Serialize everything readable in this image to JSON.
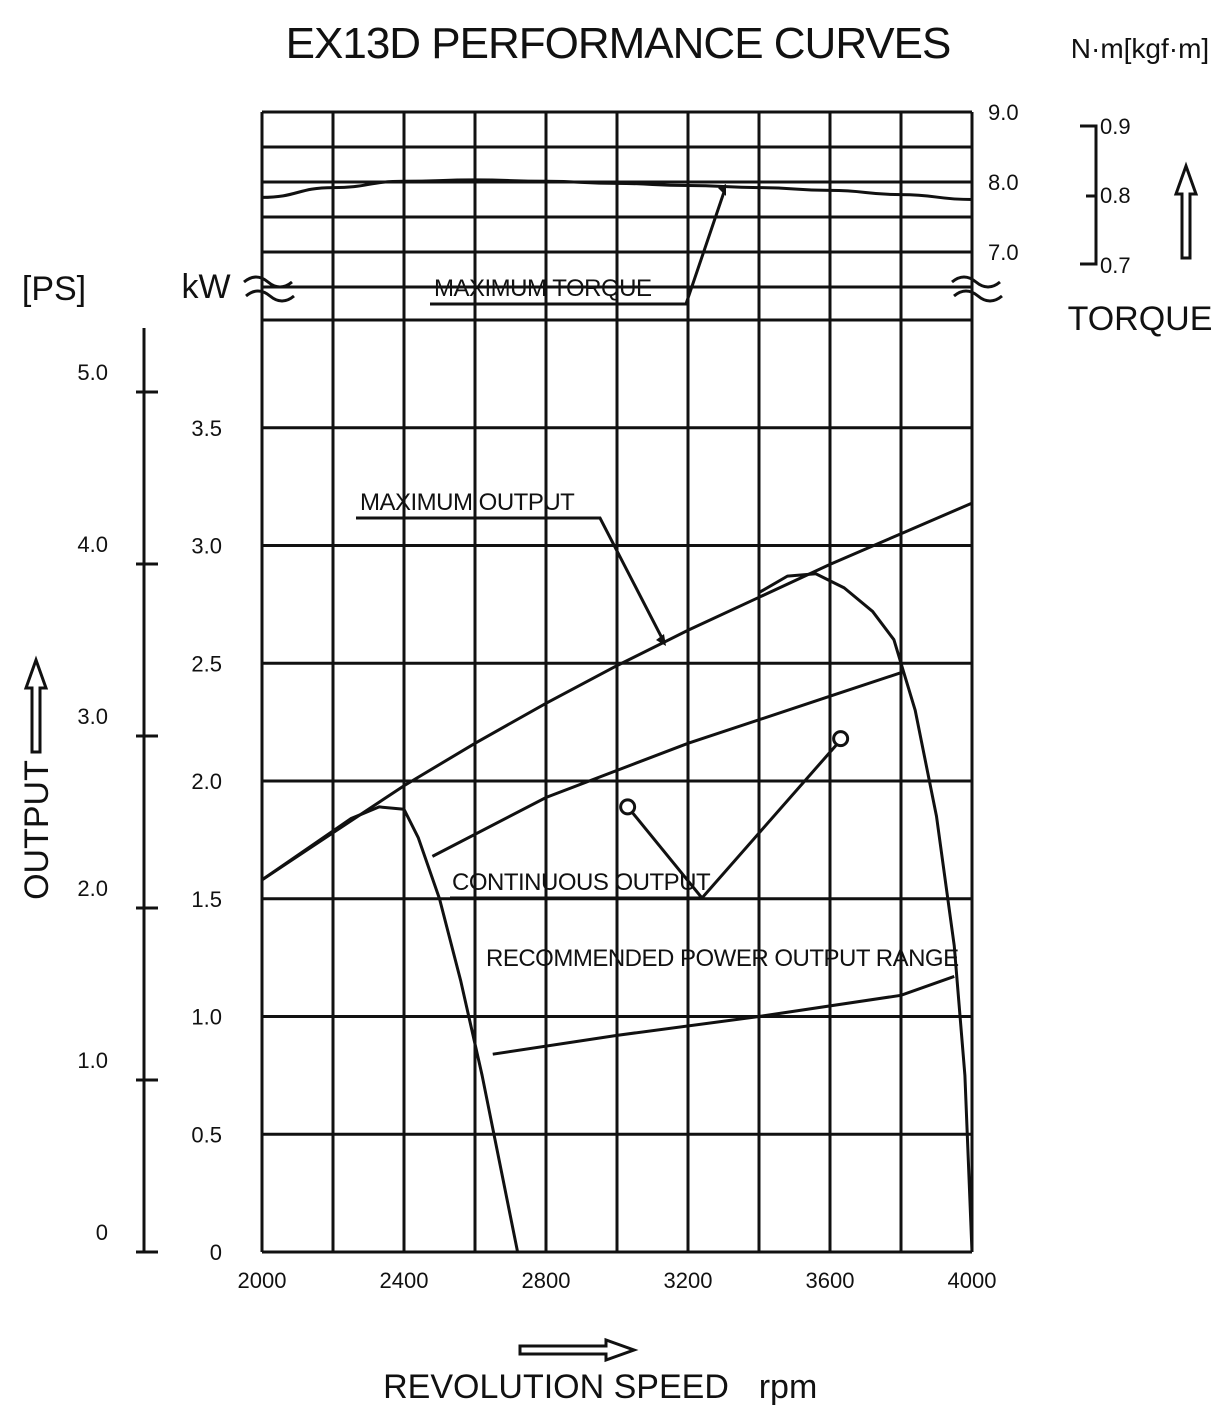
{
  "chart_data": {
    "type": "line",
    "title": "EX13D PERFORMANCE CURVES",
    "xlabel": "REVOLUTION SPEED",
    "xunit": "rpm",
    "xlim": [
      2000,
      4000
    ],
    "xticks": [
      "2000",
      "2400",
      "2800",
      "3200",
      "3600",
      "4000"
    ],
    "output_axis": {
      "label": "OUTPUT",
      "kw_unit": "kW",
      "ps_unit": "[PS]",
      "kw_lim": [
        0,
        3.5
      ],
      "kw_ticks": [
        "0",
        "0.5",
        "1.0",
        "1.5",
        "2.0",
        "2.5",
        "3.0",
        "3.5"
      ],
      "ps_ticks": [
        "0",
        "1.0",
        "2.0",
        "3.0",
        "4.0",
        "5.0"
      ]
    },
    "torque_axis": {
      "label": "TORQUE",
      "unit": "N·m[kgf·m]",
      "nm_ticks": [
        "7.0",
        "8.0",
        "9.0"
      ],
      "kgfm_ticks": [
        "0.7",
        "0.8",
        "0.9"
      ],
      "nm_lim": [
        7.0,
        9.0
      ]
    },
    "series": [
      {
        "name": "MAXIMUM TORQUE",
        "axis": "torque",
        "x": [
          2000,
          2200,
          2400,
          2600,
          2800,
          3000,
          3200,
          3400,
          3600,
          3800,
          4000
        ],
        "y": [
          7.78,
          7.92,
          8.01,
          8.03,
          8.01,
          7.98,
          7.95,
          7.92,
          7.88,
          7.82,
          7.75
        ]
      },
      {
        "name": "MAXIMUM OUTPUT",
        "axis": "output",
        "x": [
          2000,
          2200,
          2400,
          2600,
          2800,
          3000,
          3200,
          3400,
          3600,
          3800,
          4000
        ],
        "y": [
          1.58,
          1.78,
          1.98,
          2.16,
          2.33,
          2.49,
          2.64,
          2.78,
          2.92,
          3.05,
          3.18
        ]
      },
      {
        "name": "CONTINUOUS OUTPUT",
        "axis": "output",
        "x": [
          2480,
          2800,
          3200,
          3600,
          3800
        ],
        "y": [
          1.68,
          1.93,
          2.16,
          2.36,
          2.46
        ]
      },
      {
        "name": "RECOMMENDED POWER OUTPUT RANGE",
        "axis": "output",
        "x": [
          2650,
          3000,
          3400,
          3800,
          3950
        ],
        "y": [
          0.84,
          0.92,
          1.0,
          1.09,
          1.17
        ]
      }
    ],
    "cutoff_curves": [
      {
        "x": [
          2000,
          2250,
          2330,
          2400,
          2440,
          2500,
          2560,
          2620,
          2680,
          2720
        ],
        "y": [
          1.58,
          1.84,
          1.89,
          1.88,
          1.76,
          1.5,
          1.15,
          0.75,
          0.3,
          0.0
        ]
      },
      {
        "x": [
          3400,
          3480,
          3560,
          3640,
          3720,
          3780,
          3840,
          3900,
          3950,
          3980,
          4000
        ],
        "y": [
          2.8,
          2.87,
          2.88,
          2.82,
          2.72,
          2.6,
          2.3,
          1.85,
          1.3,
          0.75,
          0.0
        ]
      }
    ],
    "continuous_output_markers": [
      {
        "x": 3030,
        "y": 1.89
      },
      {
        "x": 3630,
        "y": 2.18
      }
    ],
    "grid": true
  }
}
